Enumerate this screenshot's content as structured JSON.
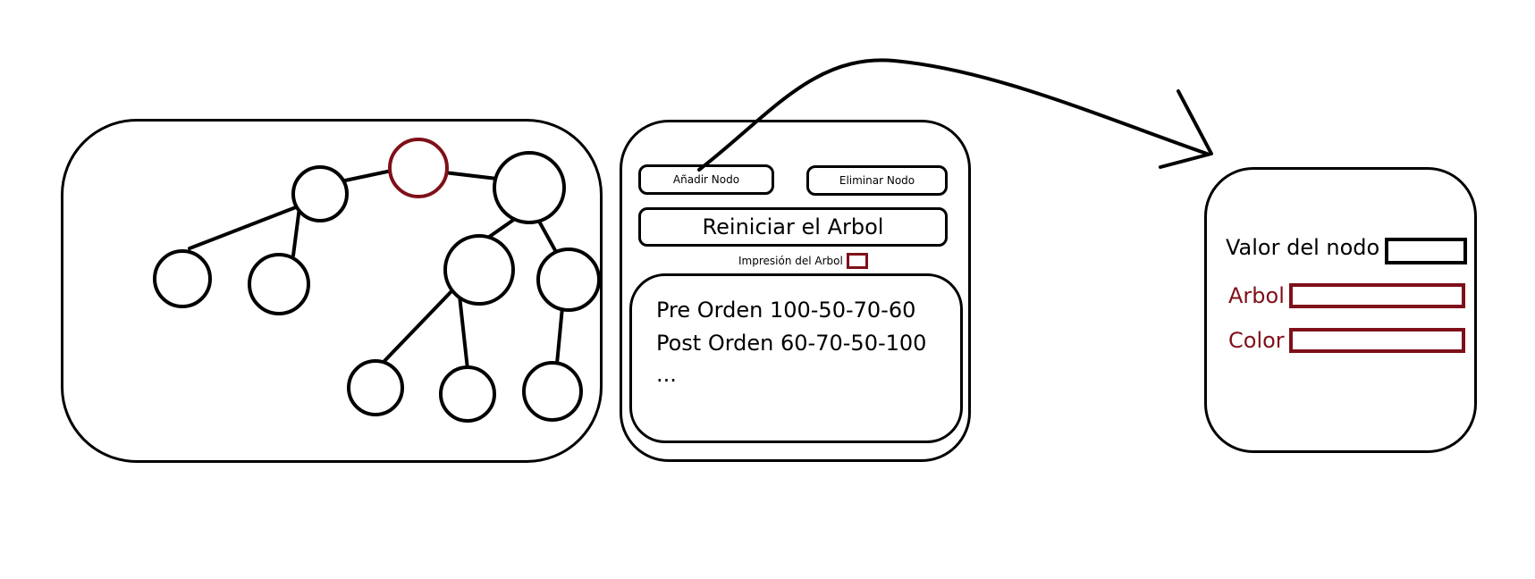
{
  "controls": {
    "add_node_label": "Añadir Nodo",
    "delete_node_label": "Eliminar Nodo",
    "reset_tree_label": "Reiniciar el Arbol",
    "print_tree_label": "Impresión del Arbol"
  },
  "output": {
    "lines": [
      "Pre Orden 100-50-70-60",
      "Post Orden 60-70-50-100",
      "..."
    ]
  },
  "form": {
    "node_value_label": "Valor del nodo",
    "tree_label": "Arbol",
    "color_label": "Color"
  },
  "colors": {
    "accent": "#7f1019",
    "stroke": "#000000",
    "background": "#ffffff"
  }
}
